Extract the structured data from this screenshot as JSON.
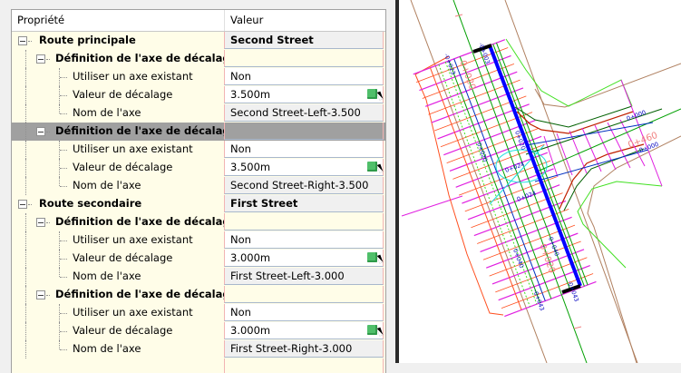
{
  "grid": {
    "header": {
      "property": "Propriété",
      "value": "Valeur"
    },
    "rows": [
      {
        "label": "Route principale",
        "value": "Second Street",
        "level": 0,
        "kind": "group"
      },
      {
        "label": "Définition de l'axe de décalage ...",
        "value": "",
        "level": 1,
        "kind": "def"
      },
      {
        "label": "Utiliser un axe existant",
        "value": "Non",
        "level": 2,
        "kind": "prop"
      },
      {
        "label": "Valeur de décalage",
        "value": "3.500m",
        "level": 2,
        "kind": "offset"
      },
      {
        "label": "Nom de l'axe",
        "value": "Second Street-Left-3.500",
        "level": 2,
        "kind": "name"
      },
      {
        "label": "Définition de l'axe de décalage ...",
        "value": "",
        "level": 1,
        "kind": "def",
        "selected": true
      },
      {
        "label": "Utiliser un axe existant",
        "value": "Non",
        "level": 2,
        "kind": "prop"
      },
      {
        "label": "Valeur de décalage",
        "value": "3.500m",
        "level": 2,
        "kind": "offset"
      },
      {
        "label": "Nom de l'axe",
        "value": "Second Street-Right-3.500",
        "level": 2,
        "kind": "name"
      },
      {
        "label": "Route secondaire",
        "value": "First Street",
        "level": 0,
        "kind": "group"
      },
      {
        "label": "Définition de l'axe de décalage ...",
        "value": "",
        "level": 1,
        "kind": "def"
      },
      {
        "label": "Utiliser un axe existant",
        "value": "Non",
        "level": 2,
        "kind": "prop"
      },
      {
        "label": "Valeur de décalage",
        "value": "3.000m",
        "level": 2,
        "kind": "offset"
      },
      {
        "label": "Nom de l'axe",
        "value": "First Street-Left-3.000",
        "level": 2,
        "kind": "name"
      },
      {
        "label": "Définition de l'axe de décalage ...",
        "value": "",
        "level": 1,
        "kind": "def"
      },
      {
        "label": "Utiliser un axe existant",
        "value": "Non",
        "level": 2,
        "kind": "prop"
      },
      {
        "label": "Valeur de décalage",
        "value": "3.000m",
        "level": 2,
        "kind": "offset"
      },
      {
        "label": "Nom de l'axe",
        "value": "First Street-Right-3.000",
        "level": 2,
        "kind": "name"
      }
    ]
  },
  "drawing": {
    "station_labels": [
      "-0+003",
      "-0+023",
      "0+020",
      "0+020",
      "0+040",
      "0+040",
      "0+000",
      "0+000",
      "-0+043",
      "-0+043",
      "0+024",
      "0+024"
    ],
    "large_labels": [
      "0+020",
      "0+460",
      "0+020"
    ],
    "colors": {
      "corridor_blue": "#0000ff",
      "magenta": "#e020e0",
      "green": "#00a000",
      "lime": "#40e020",
      "orange": "#ff5020",
      "brown": "#b08060",
      "red": "#c02000",
      "cyan": "#20e0e0",
      "salmon": "#f08080"
    }
  },
  "colors": {
    "selected_row": "#a0a0a0",
    "label_bg": "#fffde8",
    "readonly_bg": "#f0f0f0",
    "pick_icon": "#4fbf6a"
  }
}
